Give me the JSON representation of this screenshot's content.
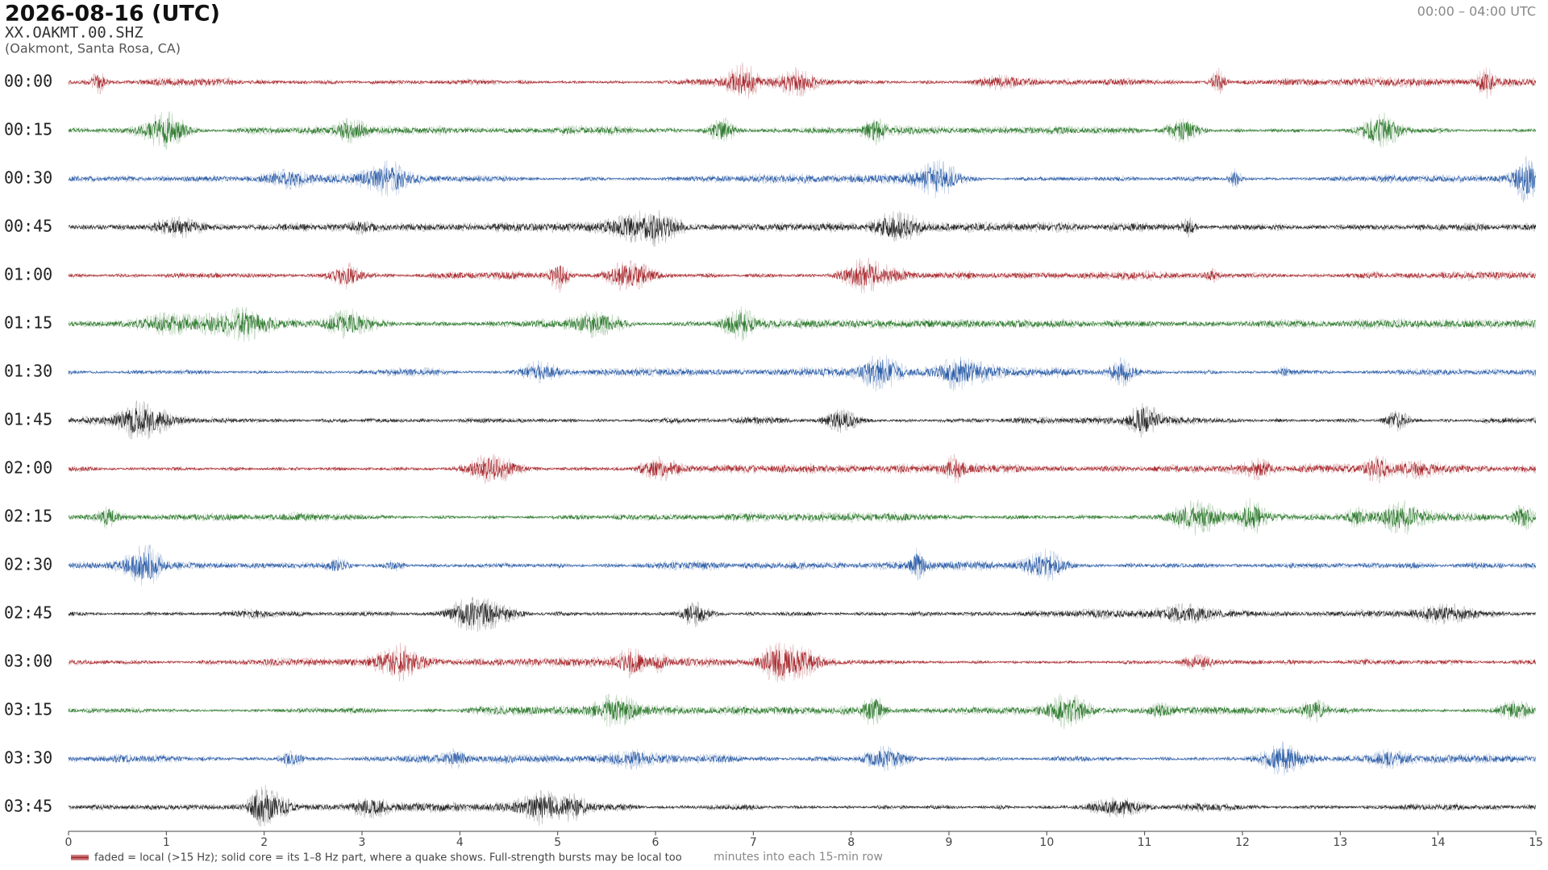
{
  "chart_data": {
    "type": "helicorder",
    "title": "2026-08-16  (UTC)",
    "station": "XX.OAKMT.00.SHZ",
    "location": "(Oakmont, Santa Rosa, CA)",
    "time_range": "00:00 – 04:00 UTC",
    "rows": [
      "00:00",
      "00:15",
      "00:30",
      "00:45",
      "01:00",
      "01:15",
      "01:30",
      "01:45",
      "02:00",
      "02:15",
      "02:30",
      "02:45",
      "03:00",
      "03:15",
      "03:30",
      "03:45"
    ],
    "colors": [
      "#a8292e",
      "#2e7a2e",
      "#2d5ea8",
      "#222222"
    ],
    "xlim": [
      0,
      15
    ],
    "xticks": [
      0,
      1,
      2,
      3,
      4,
      5,
      6,
      7,
      8,
      9,
      10,
      11,
      12,
      13,
      14,
      15
    ],
    "x_label": "minutes into each 15-min row",
    "note": "faded = local (>15 Hz); solid core = its 1–8 Hz part, where a quake shows. Full-strength bursts may be local too"
  }
}
